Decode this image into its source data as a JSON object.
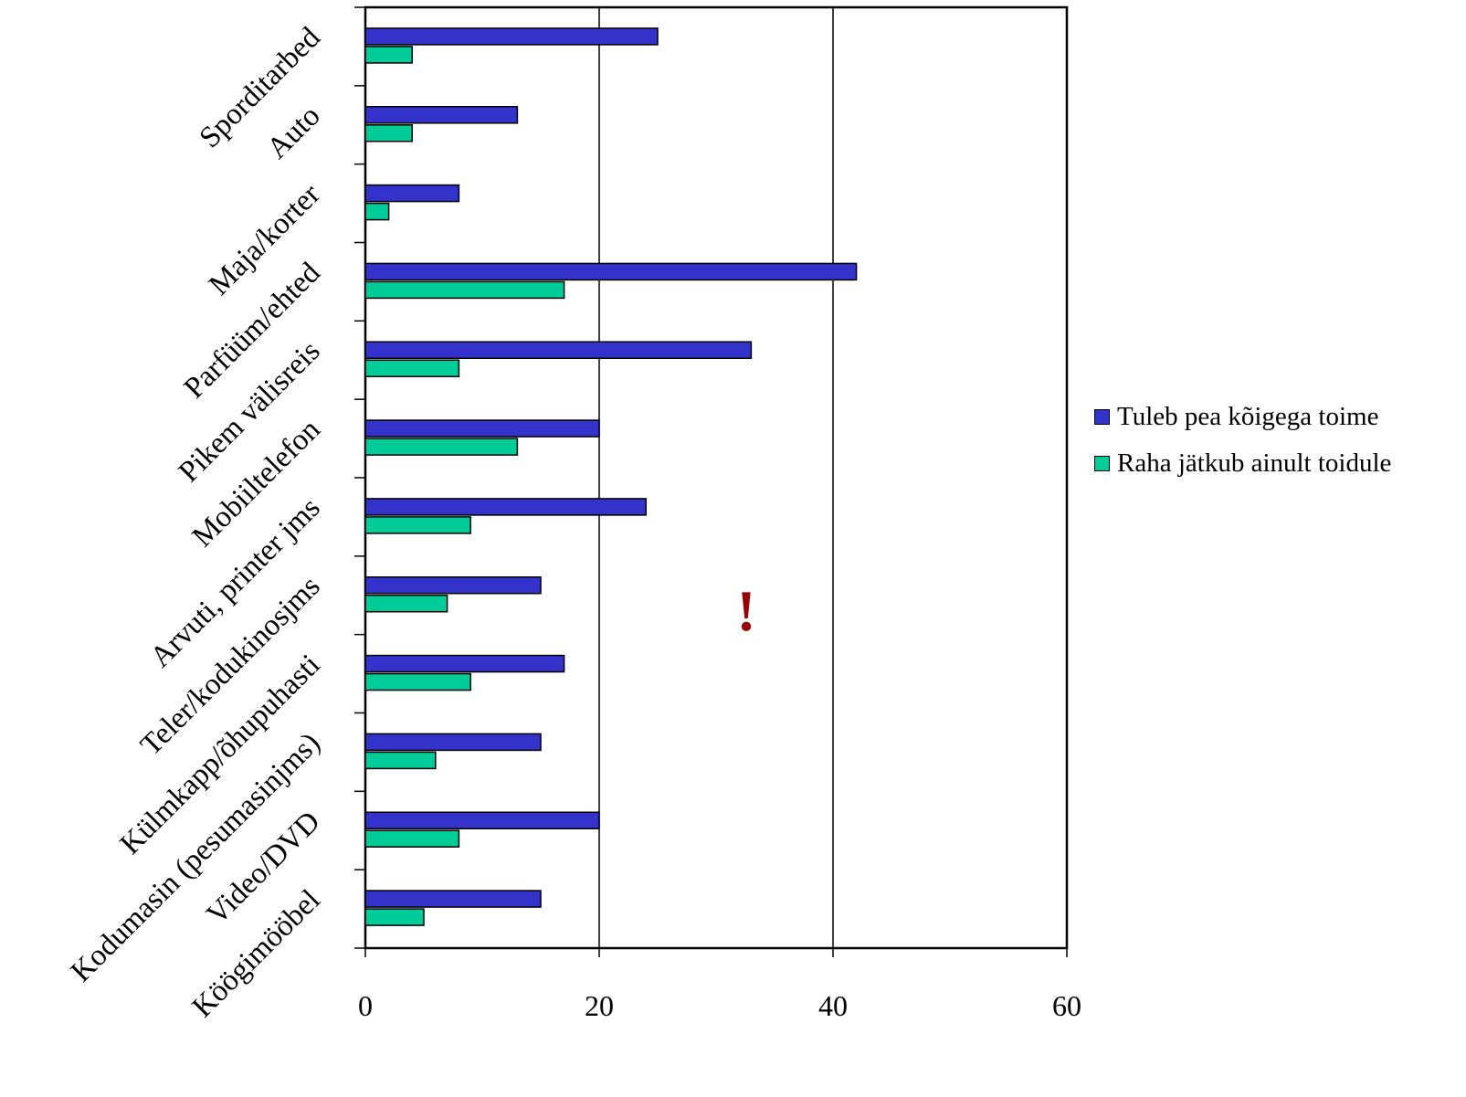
{
  "chart_data": {
    "type": "bar",
    "orientation": "horizontal",
    "categories": [
      "Sporditarbed",
      "Auto",
      "Maja/korter",
      "Parfüüm/ehted",
      "Pikem välisreis",
      "Mobiiltelefon",
      "Arvuti, printer jms",
      "Teler/kodukinosjms",
      "Külmkapp/õhupuhasti",
      "Kodumasin (pesumasinjms)",
      "Video/DVD",
      "Köögimööbel"
    ],
    "series": [
      {
        "name": "Tuleb pea kõigega toime",
        "color": "#3333cc",
        "values": [
          25,
          13,
          8,
          42,
          33,
          20,
          24,
          15,
          17,
          15,
          20,
          15
        ]
      },
      {
        "name": "Raha jätkub ainult toidule",
        "color": "#00cc99",
        "values": [
          4,
          4,
          2,
          17,
          8,
          13,
          9,
          7,
          9,
          6,
          8,
          5
        ]
      }
    ],
    "xlim": [
      0,
      60
    ],
    "xticks": [
      "0",
      "20",
      "40",
      "60"
    ],
    "grid": "vertical",
    "legend": "right",
    "annotation": {
      "text": "!",
      "color": "#990000"
    }
  }
}
